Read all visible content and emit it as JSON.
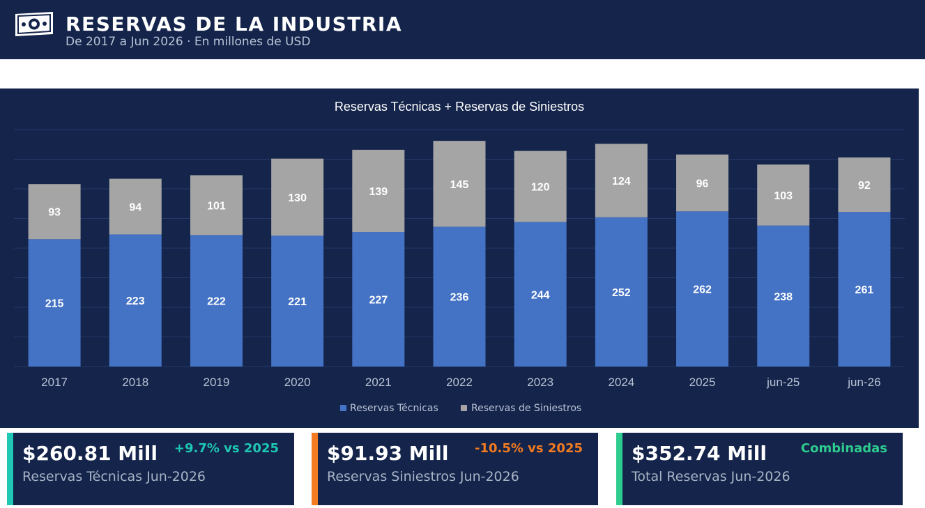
{
  "header": {
    "title": "RESERVAS DE LA INDUSTRIA",
    "subtitle": "De 2017 a Jun 2026 · En millones de USD",
    "icon": "money-bill-icon"
  },
  "colors": {
    "background": "#14244a",
    "tecnicas": "#4472c4",
    "siniestros": "#a5a5a5",
    "teal": "#1ec8b4",
    "orange": "#f47b20",
    "green": "#2ecc8f"
  },
  "chart_data": {
    "type": "bar",
    "stacked": true,
    "title": "Reservas Técnicas + Reservas de Siniestros",
    "categories": [
      "2017",
      "2018",
      "2019",
      "2020",
      "2021",
      "2022",
      "2023",
      "2024",
      "2025",
      "jun-25",
      "jun-26"
    ],
    "series": [
      {
        "name": "Reservas Técnicas",
        "values": [
          215,
          223,
          222,
          221,
          227,
          236,
          244,
          252,
          262,
          238,
          261
        ]
      },
      {
        "name": "Reservas de Siniestros",
        "values": [
          93,
          94,
          101,
          130,
          139,
          145,
          120,
          124,
          96,
          103,
          92
        ]
      }
    ],
    "ylim": [
      0,
      400
    ],
    "grid": true,
    "legend": "bottom",
    "xlabel": "",
    "ylabel": ""
  },
  "cards": [
    {
      "value": "$260.81 Mill",
      "label": "Reservas Técnicas Jun-2026",
      "change": "+9.7% vs 2025",
      "accent": "#1ec8b4",
      "change_color": "#1ec8b4"
    },
    {
      "value": "$91.93 Mill",
      "label": "Reservas Siniestros Jun-2026",
      "change": "-10.5% vs 2025",
      "accent": "#f47b20",
      "change_color": "#f47b20"
    },
    {
      "value": "$352.74 Mill",
      "label": "Total Reservas Jun-2026",
      "change": "Combinadas",
      "accent": "#2ecc8f",
      "change_color": "#2ecc8f"
    }
  ]
}
